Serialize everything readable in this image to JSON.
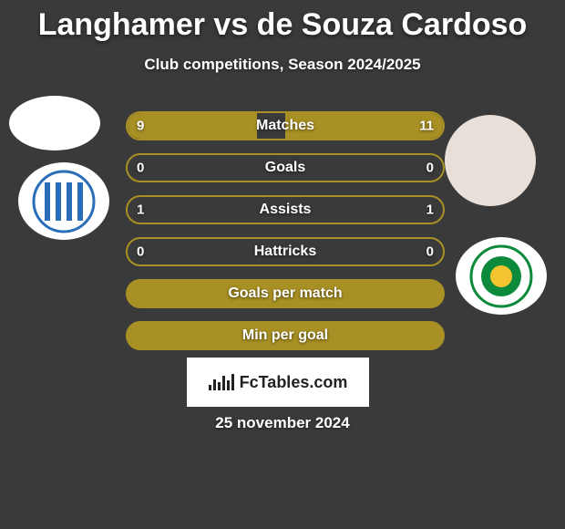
{
  "title": "Langhamer vs de Souza Cardoso",
  "subtitle": "Club competitions, Season 2024/2025",
  "date": "25 november 2024",
  "watermark": "FcTables.com",
  "players": {
    "left": {
      "avatar_bg": "#ffffff",
      "club_primary": "#2a6db8",
      "club_secondary": "#ffffff"
    },
    "right": {
      "avatar_bg": "#e8e0d8",
      "club_primary": "#0a8a3a",
      "club_secondary": "#ffffff"
    }
  },
  "stat_border": "#a89024",
  "stat_fill": "#a89024",
  "stats": [
    {
      "label": "Matches",
      "left_val": "9",
      "right_val": "11",
      "left_pct": 41,
      "right_pct": 50
    },
    {
      "label": "Goals",
      "left_val": "0",
      "right_val": "0",
      "left_pct": 0,
      "right_pct": 0
    },
    {
      "label": "Assists",
      "left_val": "1",
      "right_val": "1",
      "left_pct": 0,
      "right_pct": 0
    },
    {
      "label": "Hattricks",
      "left_val": "0",
      "right_val": "0",
      "left_pct": 0,
      "right_pct": 0
    },
    {
      "label": "Goals per match",
      "left_val": "",
      "right_val": "",
      "left_pct": 100,
      "right_pct": 0,
      "full": true
    },
    {
      "label": "Min per goal",
      "left_val": "",
      "right_val": "",
      "left_pct": 100,
      "right_pct": 0,
      "full": true
    }
  ]
}
